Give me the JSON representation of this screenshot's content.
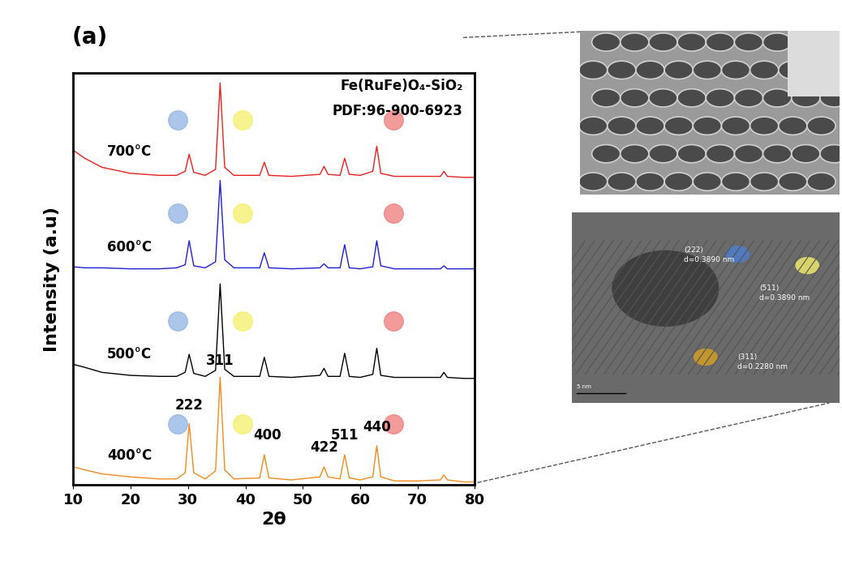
{
  "chart_data": {
    "type": "line",
    "panel_label": "(a)",
    "texts": [
      "Fe(RuFe)O₄-SiO₂",
      "PDF:96-900-6923"
    ],
    "x_label": "2θ",
    "y_label": "Intensity (a.u)",
    "xlim": [
      10,
      80
    ],
    "xticks": [
      10,
      20,
      30,
      40,
      50,
      60,
      70,
      80
    ],
    "ylim": [
      0,
      4.1
    ],
    "yticks": [],
    "tick_labels": "x",
    "x": [
      10,
      12,
      15,
      20,
      25,
      28,
      29.5,
      30.2,
      31,
      33,
      34.8,
      35.6,
      36.4,
      38,
      42.5,
      43.3,
      44.1,
      48,
      53,
      53.7,
      54.4,
      56.5,
      57.3,
      58.1,
      60,
      62.2,
      62.9,
      63.6,
      66,
      70,
      74,
      74.6,
      75.2,
      78,
      80
    ],
    "series": [
      {
        "name": "400°C",
        "color": "#f28a1e",
        "values": [
          0.18,
          0.15,
          0.11,
          0.08,
          0.06,
          0.06,
          0.12,
          0.61,
          0.12,
          0.06,
          0.14,
          1.07,
          0.15,
          0.06,
          0.07,
          0.3,
          0.07,
          0.05,
          0.08,
          0.18,
          0.08,
          0.06,
          0.3,
          0.07,
          0.05,
          0.08,
          0.39,
          0.08,
          0.04,
          0.04,
          0.05,
          0.1,
          0.05,
          0.03,
          0.03
        ]
      },
      {
        "name": "500°C",
        "color": "#000000",
        "values": [
          1.2,
          1.17,
          1.12,
          1.09,
          1.08,
          1.08,
          1.12,
          1.3,
          1.11,
          1.08,
          1.14,
          2.0,
          1.15,
          1.08,
          1.08,
          1.27,
          1.08,
          1.07,
          1.09,
          1.16,
          1.08,
          1.08,
          1.31,
          1.08,
          1.07,
          1.1,
          1.36,
          1.09,
          1.07,
          1.07,
          1.07,
          1.12,
          1.07,
          1.06,
          1.06
        ]
      },
      {
        "name": "600°C",
        "color": "#1f1fd6",
        "values": [
          2.17,
          2.16,
          2.16,
          2.15,
          2.15,
          2.16,
          2.19,
          2.43,
          2.18,
          2.16,
          2.22,
          3.03,
          2.24,
          2.16,
          2.16,
          2.31,
          2.16,
          2.15,
          2.16,
          2.2,
          2.16,
          2.16,
          2.39,
          2.16,
          2.15,
          2.17,
          2.43,
          2.18,
          2.15,
          2.15,
          2.15,
          2.18,
          2.15,
          2.15,
          2.15
        ]
      },
      {
        "name": "700°C",
        "color": "#e8201f",
        "values": [
          3.33,
          3.25,
          3.16,
          3.1,
          3.08,
          3.08,
          3.12,
          3.29,
          3.11,
          3.08,
          3.14,
          4.0,
          3.16,
          3.08,
          3.08,
          3.21,
          3.08,
          3.07,
          3.09,
          3.17,
          3.09,
          3.08,
          3.25,
          3.09,
          3.08,
          3.12,
          3.37,
          3.1,
          3.07,
          3.07,
          3.07,
          3.12,
          3.07,
          3.06,
          3.06
        ]
      }
    ],
    "annotations": [
      {
        "text": "222",
        "x": 30.2,
        "y": 0.72
      },
      {
        "text": "311",
        "x": 35.6,
        "y": 1.16
      },
      {
        "text": "400",
        "x": 43.8,
        "y": 0.42
      },
      {
        "text": "422",
        "x": 53.7,
        "y": 0.3
      },
      {
        "text": "511",
        "x": 57.3,
        "y": 0.42
      },
      {
        "text": "440",
        "x": 62.9,
        "y": 0.5
      }
    ],
    "tem_image": {
      "lattice_labels": [
        {
          "plane": "(222)",
          "spacing": "d=0.3890 nm"
        },
        {
          "plane": "(511)",
          "spacing": "d=0.3890 nm"
        },
        {
          "plane": "(311)",
          "spacing": "d=0.2280 nm"
        }
      ],
      "scale_bar": "5 nm"
    }
  }
}
